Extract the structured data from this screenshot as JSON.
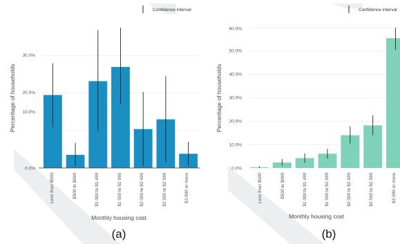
{
  "legend_label": "Confidence interval",
  "colors": {
    "panel_a": "#1a8fc4",
    "panel_b": "#7fd1b8",
    "error_bar": "#222222",
    "grid": "#e6e6e6"
  },
  "chart_data": [
    {
      "type": "bar",
      "panel_label": "(a)",
      "xlabel": "Monthly housing cost",
      "ylabel": "Percentage of households",
      "categories": [
        "Less than $500",
        "$500 to $999",
        "$1 000 to $1 499",
        "$1 500 to $1 999",
        "$2 000 to $2 499",
        "$2 500 to $2 999",
        "$3 000 or more"
      ],
      "values": [
        19.5,
        3.5,
        23.2,
        27.0,
        10.4,
        13.0,
        3.8
      ],
      "ci_lower": [
        11.0,
        0.5,
        9.8,
        17.0,
        0.5,
        1.5,
        0.5
      ],
      "ci_upper": [
        28.0,
        6.7,
        36.8,
        37.5,
        20.3,
        24.5,
        7.0
      ],
      "ylim": [
        0,
        37.5
      ],
      "yticks": [
        "0.0%",
        "10.0%",
        "20.0%",
        "30.0%"
      ],
      "grid": true,
      "legend": "top-right"
    },
    {
      "type": "bar",
      "panel_label": "(b)",
      "xlabel": "Monthly housing cost",
      "ylabel": "Percentage of households",
      "categories": [
        "Less than $500",
        "$500 to $999",
        "$1 000 to $1 499",
        "$1 500 to $1 999",
        "$2 000 to $2 499",
        "$2 500 to $2 999",
        "$3 000 or more"
      ],
      "values": [
        0.3,
        2.3,
        4.2,
        6.1,
        14.0,
        18.2,
        55.5
      ],
      "ci_lower": [
        0.0,
        1.0,
        2.2,
        4.1,
        10.5,
        14.0,
        50.5
      ],
      "ci_upper": [
        0.7,
        3.8,
        6.3,
        8.2,
        17.7,
        22.5,
        60.5
      ],
      "ylim": [
        0,
        60
      ],
      "yticks": [
        "0.0%",
        "10.0%",
        "20.0%",
        "30.0%",
        "40.0%",
        "50.0%",
        "60.0%"
      ],
      "grid": true,
      "legend": "top-right"
    }
  ]
}
